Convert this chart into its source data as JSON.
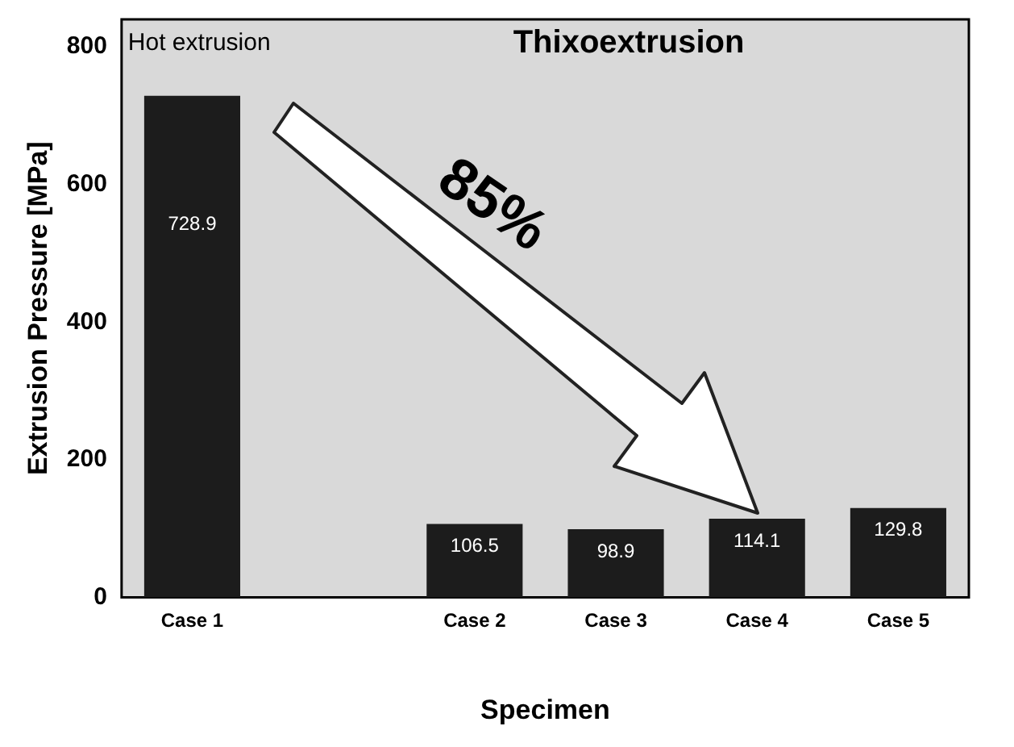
{
  "chart_data": {
    "type": "bar",
    "xlabel": "Specimen",
    "ylabel": "Extrusion Pressure [MPa]",
    "categories": [
      "Case 1",
      null,
      "Case 2",
      "Case 3",
      "Case 4",
      "Case 5"
    ],
    "values": [
      728.9,
      null,
      106.5,
      98.9,
      114.1,
      129.8
    ],
    "color": "#1c1c1c",
    "ylim": [
      0,
      840
    ],
    "yticks": [
      0,
      200,
      400,
      600,
      800
    ],
    "grid": false,
    "legend": false,
    "data_labels": true,
    "annotations": [
      "Hot extrusion",
      "Thixoextrusion",
      "85%"
    ]
  }
}
